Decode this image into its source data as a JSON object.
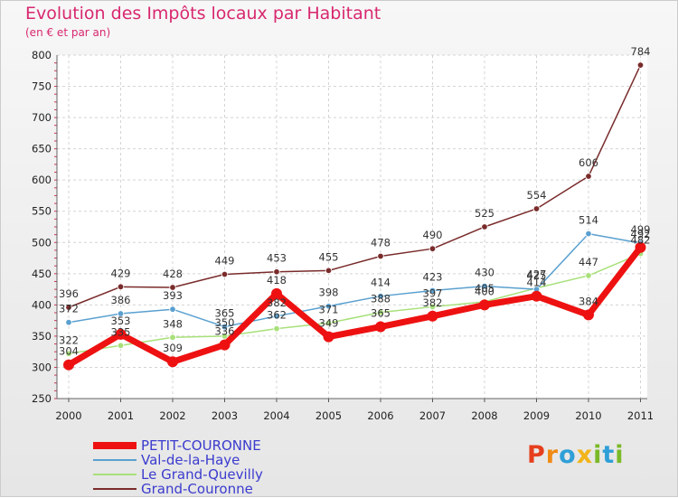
{
  "chart_data": {
    "type": "line",
    "title": "Evolution des Impôts locaux par Habitant",
    "subtitle": "(en € et par an)",
    "xlabel": "",
    "ylabel": "",
    "ylim": [
      250,
      800
    ],
    "yticks": [
      250,
      300,
      350,
      400,
      450,
      500,
      550,
      600,
      650,
      700,
      750,
      800
    ],
    "categories": [
      "2000",
      "2001",
      "2002",
      "2003",
      "2004",
      "2005",
      "2006",
      "2007",
      "2008",
      "2009",
      "2010",
      "2011"
    ],
    "series": [
      {
        "name": "PETIT-COURONNE",
        "color": "#ee1111",
        "values": [
          304,
          353,
          309,
          336,
          418,
          349,
          365,
          382,
          400,
          414,
          384,
          492
        ]
      },
      {
        "name": "Val-de-la-Haye",
        "color": "#5aa0d0",
        "values": [
          372,
          386,
          393,
          365,
          382,
          398,
          414,
          423,
          430,
          425,
          514,
          499
        ]
      },
      {
        "name": "Le Grand-Quevilly",
        "color": "#a8e07a",
        "values": [
          322,
          335,
          348,
          350,
          362,
          371,
          388,
          397,
          405,
          427,
          447,
          482
        ]
      },
      {
        "name": "Grand-Couronne",
        "color": "#7a2b2b",
        "values": [
          396,
          429,
          428,
          449,
          453,
          455,
          478,
          490,
          525,
          554,
          606,
          784
        ]
      }
    ],
    "legend_position": "bottom-left"
  },
  "logo": {
    "text": "Proxiti",
    "letters": [
      "P",
      "r",
      "o",
      "x",
      "i",
      "t",
      "i"
    ],
    "colors": [
      "#e63f1e",
      "#f08a15",
      "#2f9fd8",
      "#f2b418",
      "#7ab928",
      "#2f9fd8",
      "#7ab928"
    ]
  }
}
